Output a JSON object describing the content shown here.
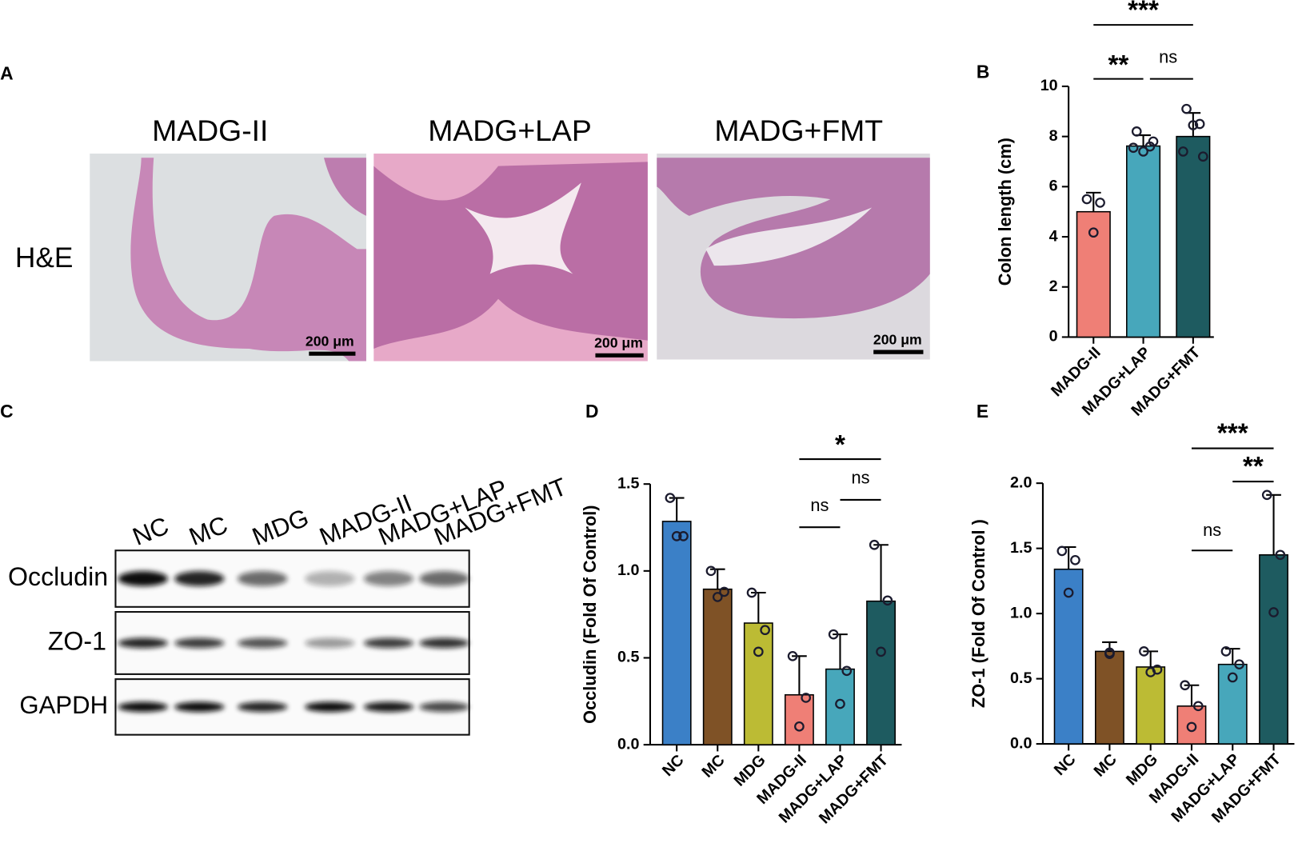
{
  "panel_a": {
    "label": "A",
    "columns": [
      "MADG-II",
      "MADG+LAP",
      "MADG+FMT"
    ],
    "row_label": "H&E",
    "scale_bars": [
      "200 μm",
      "200 μm",
      "200 μm"
    ]
  },
  "panel_c": {
    "label": "C",
    "lanes": [
      "NC",
      "MC",
      "MDG",
      "MADG-II",
      "MADG+LAP",
      "MADG+FMT"
    ],
    "rows": [
      "Occludin",
      "ZO-1",
      "GAPDH"
    ]
  },
  "chart_data": [
    {
      "type": "bar",
      "panel_label": "B",
      "y_label": "Colon length (cm)",
      "categories": [
        "MADG-II",
        "MADG+LAP",
        "MADG+FMT"
      ],
      "values": [
        5.0,
        7.62,
        8.0
      ],
      "errors": [
        0.76,
        0.43,
        0.94
      ],
      "points": [
        [
          5.5,
          5.36,
          4.17
        ],
        [
          8.2,
          7.6,
          7.4,
          7.55,
          7.8
        ],
        [
          9.1,
          8.5,
          8.45,
          7.4,
          7.2
        ]
      ],
      "colors": [
        "#ef7f76",
        "#47a7bb",
        "#1e5b60"
      ],
      "ylim": [
        0,
        10
      ],
      "yticks": [
        0,
        2,
        4,
        6,
        8,
        10
      ],
      "annotations": [
        "***",
        "**",
        "ns"
      ]
    },
    {
      "type": "bar",
      "panel_label": "D",
      "y_label": "Occludin (Fold Of Control)",
      "categories": [
        "NC",
        "MC",
        "MDG",
        "MADG-II",
        "MADG+LAP",
        "MADG+FMT"
      ],
      "values": [
        1.285,
        0.895,
        0.7,
        0.287,
        0.435,
        0.826
      ],
      "errors": [
        0.135,
        0.115,
        0.175,
        0.223,
        0.2,
        0.324
      ],
      "points": [
        [
          1.42,
          1.2,
          1.2
        ],
        [
          1.0,
          0.88,
          0.85
        ],
        [
          0.875,
          0.66,
          0.535
        ],
        [
          0.51,
          0.27,
          0.105
        ],
        [
          0.635,
          0.425,
          0.235
        ],
        [
          1.15,
          0.83,
          0.535
        ]
      ],
      "colors": [
        "#3b80c7",
        "#7f5226",
        "#bcbb34",
        "#ef7f76",
        "#47a7bb",
        "#1e5b60"
      ],
      "ylim": [
        0,
        1.5
      ],
      "yticks": [
        {
          "value": 0,
          "label": "0.0"
        },
        0.5,
        {
          "value": 1,
          "label": "1.0"
        },
        1.5
      ],
      "annotations": [
        "*",
        "ns",
        "ns"
      ]
    },
    {
      "type": "bar",
      "panel_label": "E",
      "y_label": "ZO-1 (Fold Of Control )",
      "categories": [
        "NC",
        "MC",
        "MDG",
        "MADG-II",
        "MADG+LAP",
        "MADG+FMT"
      ],
      "values": [
        1.34,
        0.71,
        0.59,
        0.29,
        0.61,
        1.45
      ],
      "errors": [
        0.17,
        0.07,
        0.12,
        0.16,
        0.12,
        0.46
      ],
      "points": [
        [
          1.48,
          1.41,
          1.16
        ],
        [
          0.7,
          0.69,
          0.7
        ],
        [
          0.71,
          0.57,
          0.55
        ],
        [
          0.45,
          0.29,
          0.13
        ],
        [
          0.71,
          0.61,
          0.51
        ],
        [
          1.91,
          1.45,
          1.01
        ]
      ],
      "colors": [
        "#3b80c7",
        "#7f5226",
        "#bcbb34",
        "#ef7f76",
        "#47a7bb",
        "#1e5b60"
      ],
      "ylim": [
        0,
        2
      ],
      "yticks": [
        {
          "value": 0,
          "label": "0.0"
        },
        0.5,
        {
          "value": 1,
          "label": "1.0"
        },
        1.5,
        {
          "value": 2,
          "label": "2.0"
        }
      ],
      "annotations": [
        "***",
        "**",
        "ns"
      ]
    }
  ]
}
